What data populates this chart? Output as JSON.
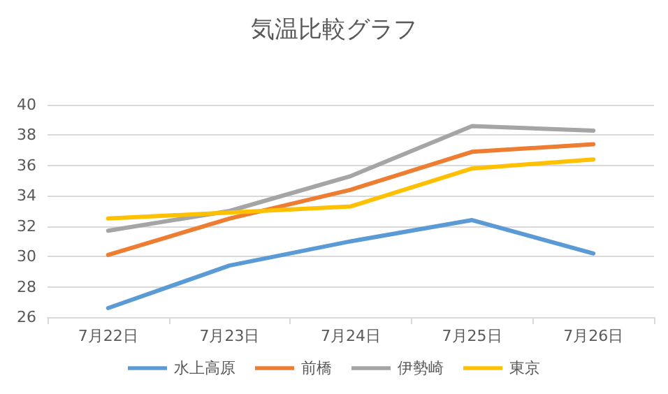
{
  "chart_data": {
    "type": "line",
    "title": "気温比較グラフ",
    "categories": [
      "7月22日",
      "7月23日",
      "7月24日",
      "7月25日",
      "7月26日"
    ],
    "series": [
      {
        "name": "水上高原",
        "color": "#5b9bd5",
        "values": [
          26.6,
          29.4,
          31.0,
          32.4,
          30.2
        ]
      },
      {
        "name": "前橋",
        "color": "#ed7d31",
        "values": [
          30.1,
          32.5,
          34.4,
          36.9,
          37.4
        ]
      },
      {
        "name": "伊勢崎",
        "color": "#a5a5a5",
        "values": [
          31.7,
          33.0,
          35.3,
          38.6,
          38.3
        ]
      },
      {
        "name": "東京",
        "color": "#ffc000",
        "values": [
          32.5,
          32.9,
          33.3,
          35.8,
          36.4
        ]
      }
    ],
    "ylim": [
      26,
      40
    ],
    "yticks": [
      26,
      28,
      30,
      32,
      34,
      36,
      38,
      40
    ],
    "grid": "y",
    "legend": "bottom",
    "marker": "none",
    "line_style": "solid"
  }
}
